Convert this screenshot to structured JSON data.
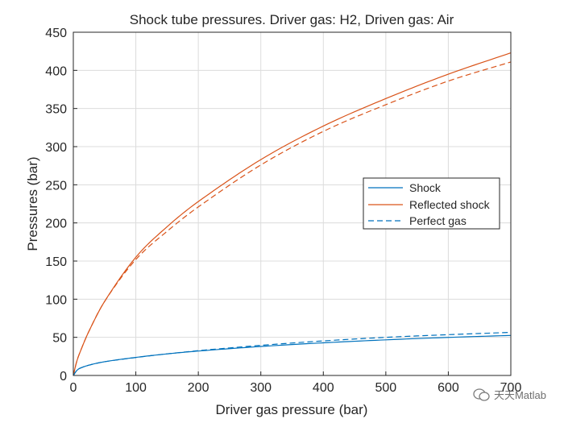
{
  "chart_data": {
    "type": "line",
    "title": "Shock tube pressures. Driver gas: H2, Driven gas: Air",
    "xlabel": "Driver gas pressure (bar)",
    "ylabel": "Pressures (bar)",
    "xlim": [
      0,
      700
    ],
    "ylim": [
      0,
      450
    ],
    "xticks": [
      "0",
      "100",
      "200",
      "300",
      "400",
      "500",
      "600",
      "700"
    ],
    "yticks": [
      "0",
      "50",
      "100",
      "150",
      "200",
      "250",
      "300",
      "350",
      "400",
      "450"
    ],
    "grid": true,
    "legend_position": "right",
    "legend": [
      "Shock",
      "Reflected shock",
      "Perfect gas"
    ],
    "series": [
      {
        "name": "Shock",
        "color": "#0072BD",
        "style": "solid",
        "x": [
          0,
          5,
          10,
          25,
          50,
          100,
          150,
          200,
          300,
          400,
          500,
          600,
          700
        ],
        "y": [
          0,
          6,
          9.2,
          13.5,
          18.0,
          23.7,
          28.3,
          32.0,
          38.0,
          42.8,
          46.7,
          49.9,
          52.5
        ]
      },
      {
        "name": "Reflected shock",
        "color": "#D95319",
        "style": "solid",
        "x": [
          0,
          5,
          10,
          25,
          50,
          100,
          150,
          200,
          300,
          400,
          500,
          600,
          700
        ],
        "y": [
          0,
          17,
          29,
          58,
          97,
          155,
          195,
          228,
          283,
          327,
          363,
          395,
          423
        ]
      },
      {
        "name": "Perfect gas (reflected)",
        "color": "#D95319",
        "style": "dashed",
        "x": [
          0,
          5,
          10,
          25,
          50,
          100,
          150,
          200,
          300,
          400,
          500,
          600,
          700
        ],
        "y": [
          0,
          17,
          29,
          58,
          97,
          152,
          189,
          221,
          276,
          320,
          355,
          386,
          411
        ]
      },
      {
        "name": "Perfect gas",
        "color": "#0072BD",
        "style": "dashed",
        "x": [
          0,
          5,
          10,
          25,
          50,
          100,
          150,
          200,
          300,
          400,
          500,
          600,
          700
        ],
        "y": [
          0,
          6,
          9.2,
          13.5,
          18.0,
          23.5,
          28.3,
          32.5,
          39.5,
          45.3,
          50.0,
          53.5,
          56.5
        ]
      }
    ]
  },
  "watermark": {
    "text": "天天Matlab"
  }
}
